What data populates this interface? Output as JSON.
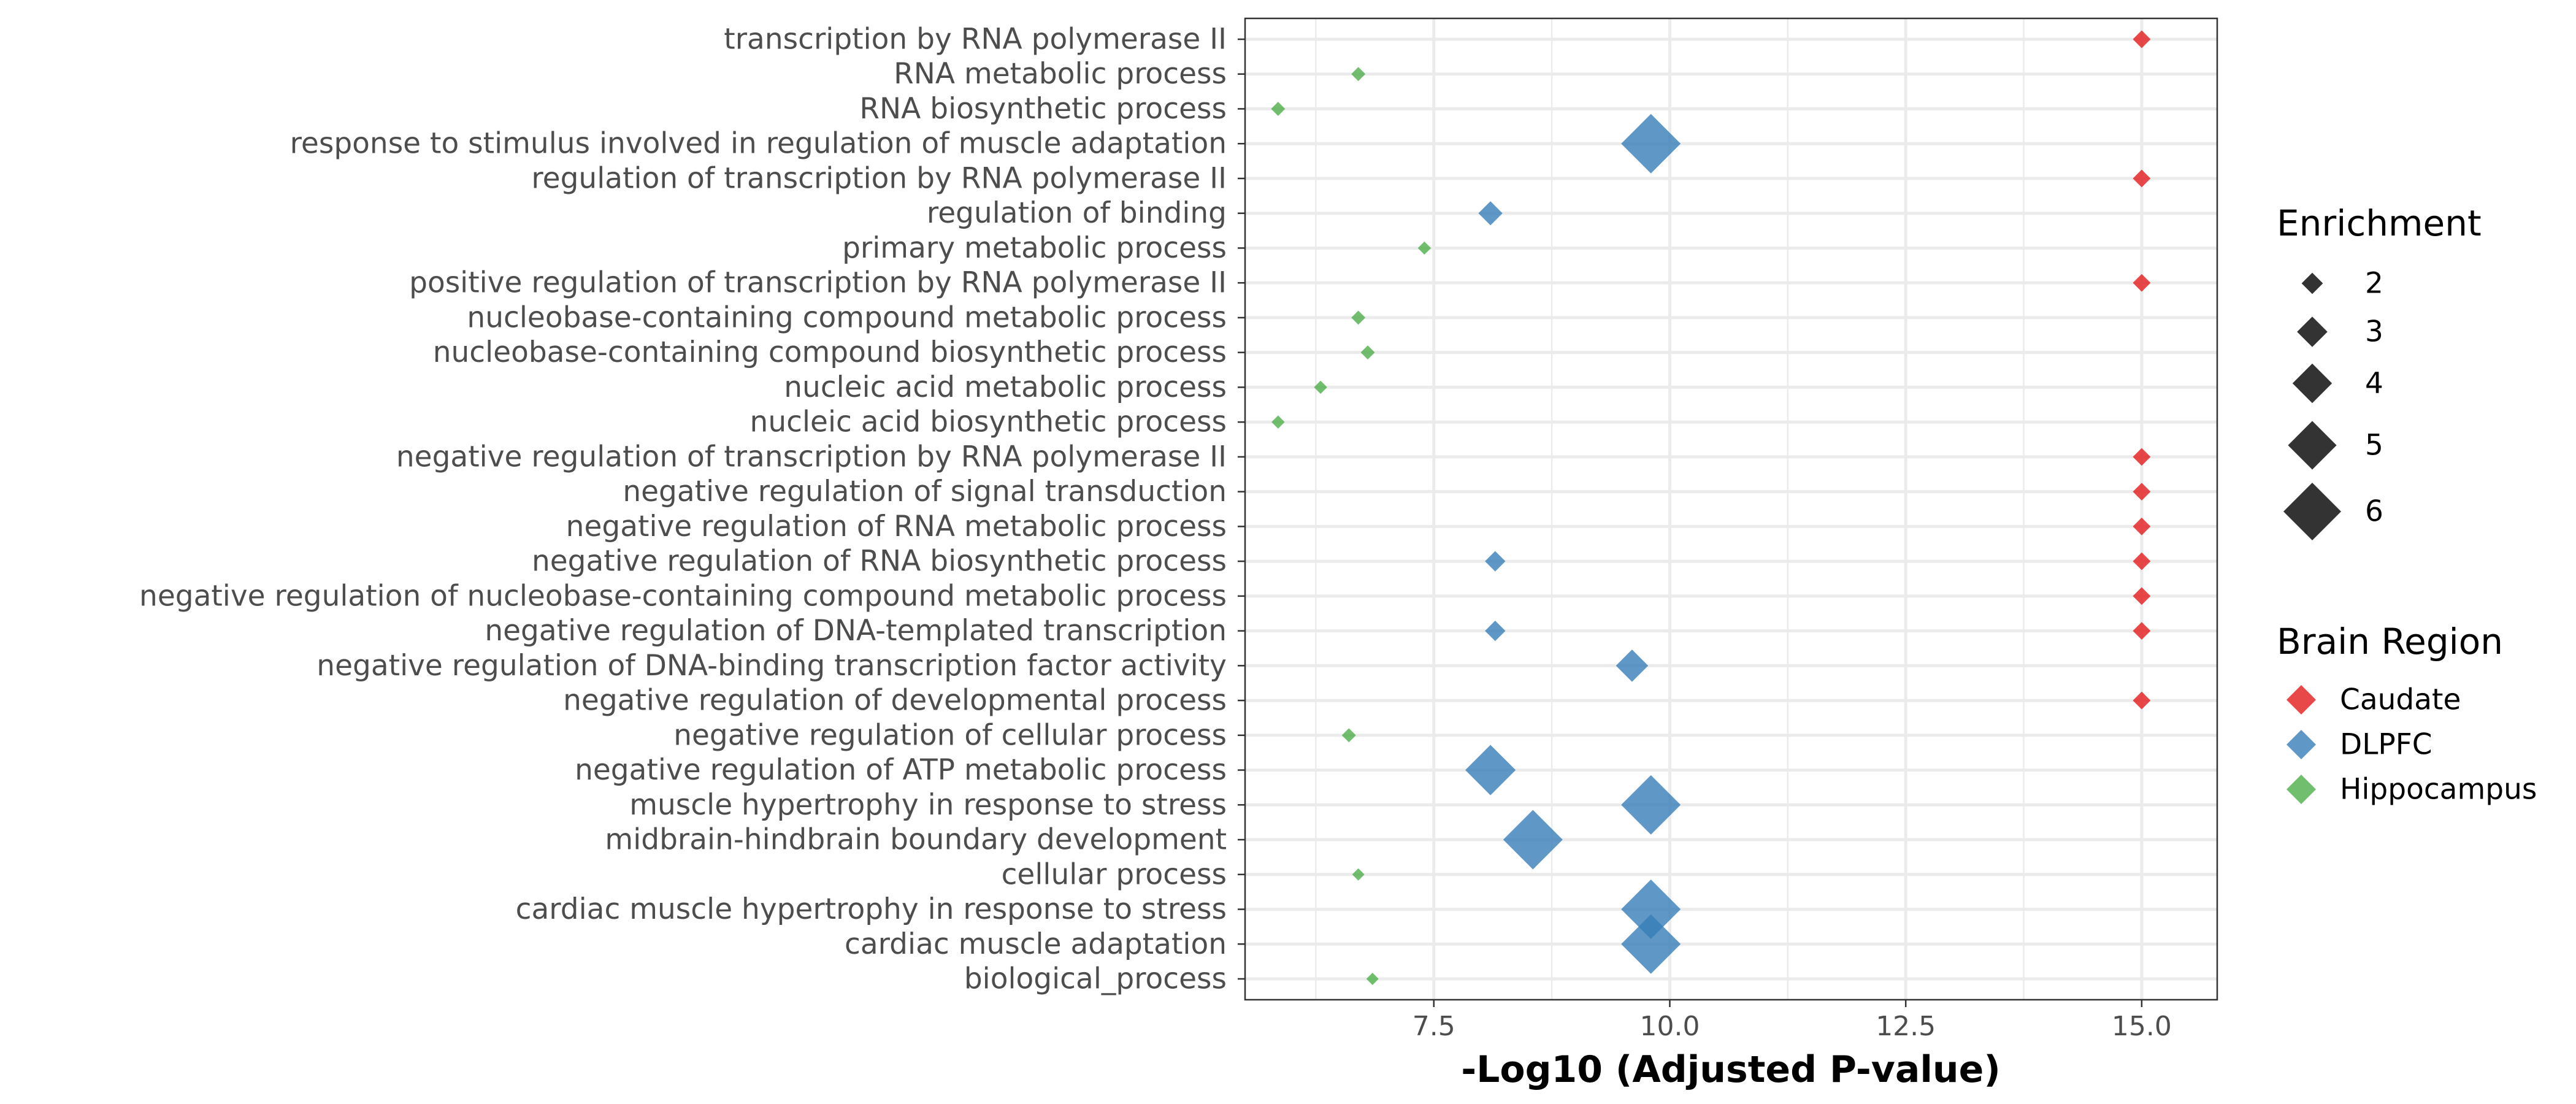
{
  "chart_data": {
    "type": "scatter",
    "xlabel": "-Log10 (Adjusted P-value)",
    "ylabel": "",
    "title": "",
    "xlim": [
      5.5,
      15.8
    ],
    "xticks": [
      7.5,
      10.0,
      12.5,
      15.0
    ],
    "xtick_labels": [
      "7.5",
      "10.0",
      "12.5",
      "15.0"
    ],
    "minor_gridlines": [
      6.25,
      8.75,
      11.25,
      13.75
    ],
    "grid": true,
    "marker": "diamond",
    "categories": [
      "transcription by RNA polymerase II",
      "RNA metabolic process",
      "RNA biosynthetic process",
      "response to stimulus involved in regulation of muscle adaptation",
      "regulation of transcription by RNA polymerase II",
      "regulation of binding",
      "primary metabolic process",
      "positive regulation of transcription by RNA polymerase II",
      "nucleobase-containing compound metabolic process",
      "nucleobase-containing compound biosynthetic process",
      "nucleic acid metabolic process",
      "nucleic acid biosynthetic process",
      "negative regulation of transcription by RNA polymerase II",
      "negative regulation of signal transduction",
      "negative regulation of RNA metabolic process",
      "negative regulation of RNA biosynthetic process",
      "negative regulation of nucleobase-containing compound metabolic process",
      "negative regulation of DNA-templated transcription",
      "negative regulation of DNA-binding transcription factor activity",
      "negative regulation of developmental process",
      "negative regulation of cellular process",
      "negative regulation of ATP metabolic process",
      "muscle hypertrophy in response to stress",
      "midbrain-hindbrain boundary development",
      "cellular process",
      "cardiac muscle hypertrophy in response to stress",
      "cardiac muscle adaptation",
      "biological_process"
    ],
    "series": [
      {
        "name": "Caudate",
        "color": "#e41a1c",
        "points": [
          {
            "category": "transcription by RNA polymerase II",
            "x": 15.0,
            "enrichment": 1.6
          },
          {
            "category": "regulation of transcription by RNA polymerase II",
            "x": 15.0,
            "enrichment": 1.6
          },
          {
            "category": "positive regulation of transcription by RNA polymerase II",
            "x": 15.0,
            "enrichment": 1.6
          },
          {
            "category": "negative regulation of transcription by RNA polymerase II",
            "x": 15.0,
            "enrichment": 1.6
          },
          {
            "category": "negative regulation of signal transduction",
            "x": 15.0,
            "enrichment": 1.6
          },
          {
            "category": "negative regulation of RNA metabolic process",
            "x": 15.0,
            "enrichment": 1.6
          },
          {
            "category": "negative regulation of RNA biosynthetic process",
            "x": 15.0,
            "enrichment": 1.6
          },
          {
            "category": "negative regulation of nucleobase-containing compound metabolic process",
            "x": 15.0,
            "enrichment": 1.6
          },
          {
            "category": "negative regulation of DNA-templated transcription",
            "x": 15.0,
            "enrichment": 1.6
          },
          {
            "category": "negative regulation of developmental process",
            "x": 15.0,
            "enrichment": 1.6
          }
        ]
      },
      {
        "name": "DLPFC",
        "color": "#377eb8",
        "points": [
          {
            "category": "response to stimulus involved in regulation of muscle adaptation",
            "x": 9.8,
            "enrichment": 6.2
          },
          {
            "category": "regulation of binding",
            "x": 8.1,
            "enrichment": 2.3
          },
          {
            "category": "negative regulation of RNA biosynthetic process",
            "x": 8.15,
            "enrichment": 1.9
          },
          {
            "category": "negative regulation of DNA-templated transcription",
            "x": 8.15,
            "enrichment": 1.9
          },
          {
            "category": "negative regulation of DNA-binding transcription factor activity",
            "x": 9.6,
            "enrichment": 3.2
          },
          {
            "category": "negative regulation of ATP metabolic process",
            "x": 8.1,
            "enrichment": 5.2
          },
          {
            "category": "muscle hypertrophy in response to stress",
            "x": 9.8,
            "enrichment": 6.2
          },
          {
            "category": "midbrain-hindbrain boundary development",
            "x": 8.55,
            "enrichment": 6.2
          },
          {
            "category": "cardiac muscle hypertrophy in response to stress",
            "x": 9.8,
            "enrichment": 6.2
          },
          {
            "category": "cardiac muscle adaptation",
            "x": 9.8,
            "enrichment": 6.2
          }
        ]
      },
      {
        "name": "Hippocampus",
        "color": "#4daf4a",
        "points": [
          {
            "category": "RNA metabolic process",
            "x": 6.7,
            "enrichment": 1.2
          },
          {
            "category": "RNA biosynthetic process",
            "x": 5.85,
            "enrichment": 1.2
          },
          {
            "category": "primary metabolic process",
            "x": 7.4,
            "enrichment": 1.1
          },
          {
            "category": "nucleobase-containing compound metabolic process",
            "x": 6.7,
            "enrichment": 1.2
          },
          {
            "category": "nucleobase-containing compound biosynthetic process",
            "x": 6.8,
            "enrichment": 1.2
          },
          {
            "category": "nucleic acid metabolic process",
            "x": 6.3,
            "enrichment": 1.1
          },
          {
            "category": "nucleic acid biosynthetic process",
            "x": 5.85,
            "enrichment": 1.1
          },
          {
            "category": "negative regulation of cellular process",
            "x": 6.6,
            "enrichment": 1.2
          },
          {
            "category": "cellular process",
            "x": 6.7,
            "enrichment": 1.0
          },
          {
            "category": "biological_process",
            "x": 6.85,
            "enrichment": 1.0
          }
        ]
      }
    ],
    "legend_size": {
      "title": "Enrichment",
      "values": [
        2,
        3,
        4,
        5,
        6
      ],
      "labels": [
        "2",
        "3",
        "4",
        "5",
        "6"
      ],
      "position": "right"
    },
    "legend_color": {
      "title": "Brain Region",
      "entries": [
        {
          "label": "Caudate",
          "color": "#e41a1c"
        },
        {
          "label": "DLPFC",
          "color": "#377eb8"
        },
        {
          "label": "Hippocampus",
          "color": "#4daf4a"
        }
      ],
      "position": "right"
    }
  }
}
